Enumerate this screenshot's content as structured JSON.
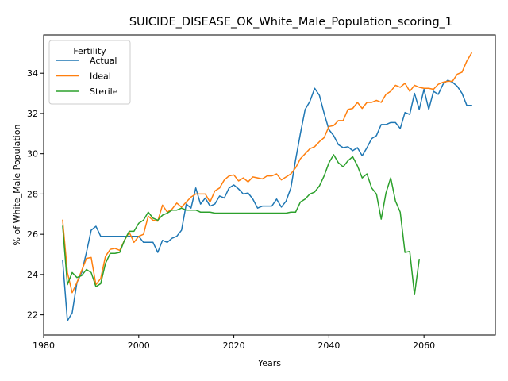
{
  "chart_data": {
    "type": "line",
    "title": "SUICIDE_DISEASE_OK_White_Male_Population_scoring_1",
    "xlabel": "Years",
    "ylabel": "% of White_Male Population",
    "xlim": [
      1980,
      2075
    ],
    "ylim": [
      21.0,
      35.9
    ],
    "xticks": [
      1980,
      2000,
      2020,
      2040,
      2060
    ],
    "yticks": [
      22,
      24,
      26,
      28,
      30,
      32,
      34
    ],
    "grid": false,
    "legend": {
      "title": "Fertility",
      "placement": "top-left"
    },
    "series": [
      {
        "name": "Actual",
        "color": "#1f77b4",
        "points": [
          [
            1984,
            24.7
          ],
          [
            1985,
            21.7
          ],
          [
            1986,
            22.1
          ],
          [
            1987,
            23.6
          ],
          [
            1988,
            24.1
          ],
          [
            1989,
            25.1
          ],
          [
            1990,
            26.2
          ],
          [
            1991,
            26.4
          ],
          [
            1992,
            25.9
          ],
          [
            1993,
            25.9
          ],
          [
            1994,
            25.9
          ],
          [
            1995,
            25.9
          ],
          [
            1996,
            25.9
          ],
          [
            1997,
            25.9
          ],
          [
            1998,
            25.9
          ],
          [
            1999,
            25.9
          ],
          [
            2000,
            25.9
          ],
          [
            2001,
            25.6
          ],
          [
            2002,
            25.6
          ],
          [
            2003,
            25.6
          ],
          [
            2004,
            25.1
          ],
          [
            2005,
            25.7
          ],
          [
            2006,
            25.6
          ],
          [
            2007,
            25.8
          ],
          [
            2008,
            25.9
          ],
          [
            2009,
            26.2
          ],
          [
            2010,
            27.5
          ],
          [
            2011,
            27.3
          ],
          [
            2012,
            28.3
          ],
          [
            2013,
            27.5
          ],
          [
            2014,
            27.8
          ],
          [
            2015,
            27.4
          ],
          [
            2016,
            27.5
          ],
          [
            2017,
            27.9
          ],
          [
            2018,
            27.8
          ],
          [
            2019,
            28.3
          ],
          [
            2020,
            28.45
          ],
          [
            2021,
            28.25
          ],
          [
            2022,
            28.0
          ],
          [
            2023,
            28.05
          ],
          [
            2024,
            27.75
          ],
          [
            2025,
            27.3
          ],
          [
            2026,
            27.4
          ],
          [
            2027,
            27.4
          ],
          [
            2028,
            27.4
          ],
          [
            2029,
            27.75
          ],
          [
            2030,
            27.35
          ],
          [
            2031,
            27.65
          ],
          [
            2032,
            28.3
          ],
          [
            2033,
            29.7
          ],
          [
            2034,
            31.0
          ],
          [
            2035,
            32.2
          ],
          [
            2036,
            32.6
          ],
          [
            2037,
            33.25
          ],
          [
            2038,
            32.9
          ],
          [
            2039,
            32.0
          ],
          [
            2040,
            31.2
          ],
          [
            2041,
            30.9
          ],
          [
            2042,
            30.45
          ],
          [
            2043,
            30.3
          ],
          [
            2044,
            30.35
          ],
          [
            2045,
            30.15
          ],
          [
            2046,
            30.3
          ],
          [
            2047,
            29.9
          ],
          [
            2048,
            30.3
          ],
          [
            2049,
            30.75
          ],
          [
            2050,
            30.9
          ],
          [
            2051,
            31.45
          ],
          [
            2052,
            31.45
          ],
          [
            2053,
            31.55
          ],
          [
            2054,
            31.55
          ],
          [
            2055,
            31.25
          ],
          [
            2056,
            32.05
          ],
          [
            2057,
            31.95
          ],
          [
            2058,
            33.0
          ],
          [
            2059,
            32.2
          ],
          [
            2060,
            33.2
          ],
          [
            2061,
            32.2
          ],
          [
            2062,
            33.1
          ],
          [
            2063,
            32.95
          ],
          [
            2064,
            33.45
          ],
          [
            2065,
            33.65
          ],
          [
            2066,
            33.55
          ],
          [
            2067,
            33.35
          ],
          [
            2068,
            33.0
          ],
          [
            2069,
            32.4
          ],
          [
            2070,
            32.4
          ]
        ]
      },
      {
        "name": "Ideal",
        "color": "#ff7f0e",
        "points": [
          [
            1984,
            26.7
          ],
          [
            1985,
            24.1
          ],
          [
            1986,
            23.1
          ],
          [
            1987,
            23.6
          ],
          [
            1988,
            24.2
          ],
          [
            1989,
            24.8
          ],
          [
            1990,
            24.85
          ],
          [
            1991,
            23.5
          ],
          [
            1992,
            23.8
          ],
          [
            1993,
            24.9
          ],
          [
            1994,
            25.25
          ],
          [
            1995,
            25.3
          ],
          [
            1996,
            25.2
          ],
          [
            1997,
            25.7
          ],
          [
            1998,
            26.1
          ],
          [
            1999,
            25.6
          ],
          [
            2000,
            25.9
          ],
          [
            2001,
            26.0
          ],
          [
            2002,
            26.9
          ],
          [
            2003,
            26.7
          ],
          [
            2004,
            26.65
          ],
          [
            2005,
            27.45
          ],
          [
            2006,
            27.1
          ],
          [
            2007,
            27.25
          ],
          [
            2008,
            27.55
          ],
          [
            2009,
            27.35
          ],
          [
            2010,
            27.6
          ],
          [
            2011,
            27.85
          ],
          [
            2012,
            28.0
          ],
          [
            2013,
            28.0
          ],
          [
            2014,
            28.0
          ],
          [
            2015,
            27.6
          ],
          [
            2016,
            28.15
          ],
          [
            2017,
            28.3
          ],
          [
            2018,
            28.7
          ],
          [
            2019,
            28.9
          ],
          [
            2020,
            28.95
          ],
          [
            2021,
            28.65
          ],
          [
            2022,
            28.8
          ],
          [
            2023,
            28.6
          ],
          [
            2024,
            28.85
          ],
          [
            2025,
            28.8
          ],
          [
            2026,
            28.75
          ],
          [
            2027,
            28.9
          ],
          [
            2028,
            28.9
          ],
          [
            2029,
            29.0
          ],
          [
            2030,
            28.7
          ],
          [
            2031,
            28.85
          ],
          [
            2032,
            29.0
          ],
          [
            2033,
            29.3
          ],
          [
            2034,
            29.75
          ],
          [
            2035,
            30.0
          ],
          [
            2036,
            30.25
          ],
          [
            2037,
            30.35
          ],
          [
            2038,
            30.6
          ],
          [
            2039,
            30.8
          ],
          [
            2040,
            31.35
          ],
          [
            2041,
            31.4
          ],
          [
            2042,
            31.65
          ],
          [
            2043,
            31.65
          ],
          [
            2044,
            32.2
          ],
          [
            2045,
            32.25
          ],
          [
            2046,
            32.55
          ],
          [
            2047,
            32.25
          ],
          [
            2048,
            32.55
          ],
          [
            2049,
            32.55
          ],
          [
            2050,
            32.65
          ],
          [
            2051,
            32.55
          ],
          [
            2052,
            32.95
          ],
          [
            2053,
            33.1
          ],
          [
            2054,
            33.4
          ],
          [
            2055,
            33.3
          ],
          [
            2056,
            33.5
          ],
          [
            2057,
            33.1
          ],
          [
            2058,
            33.4
          ],
          [
            2059,
            33.3
          ],
          [
            2060,
            33.25
          ],
          [
            2061,
            33.25
          ],
          [
            2062,
            33.2
          ],
          [
            2063,
            33.45
          ],
          [
            2064,
            33.55
          ],
          [
            2065,
            33.6
          ],
          [
            2066,
            33.6
          ],
          [
            2067,
            33.95
          ],
          [
            2068,
            34.05
          ],
          [
            2069,
            34.6
          ],
          [
            2070,
            35.0
          ]
        ]
      },
      {
        "name": "Sterile",
        "color": "#2ca02c",
        "points": [
          [
            1984,
            26.4
          ],
          [
            1985,
            23.5
          ],
          [
            1986,
            24.1
          ],
          [
            1987,
            23.85
          ],
          [
            1988,
            23.95
          ],
          [
            1989,
            24.25
          ],
          [
            1990,
            24.1
          ],
          [
            1991,
            23.4
          ],
          [
            1992,
            23.55
          ],
          [
            1993,
            24.55
          ],
          [
            1994,
            25.05
          ],
          [
            1995,
            25.05
          ],
          [
            1996,
            25.1
          ],
          [
            1997,
            25.7
          ],
          [
            1998,
            26.15
          ],
          [
            1999,
            26.15
          ],
          [
            2000,
            26.55
          ],
          [
            2001,
            26.7
          ],
          [
            2002,
            27.1
          ],
          [
            2003,
            26.8
          ],
          [
            2004,
            26.7
          ],
          [
            2005,
            26.95
          ],
          [
            2006,
            27.05
          ],
          [
            2007,
            27.2
          ],
          [
            2008,
            27.2
          ],
          [
            2009,
            27.3
          ],
          [
            2010,
            27.2
          ],
          [
            2011,
            27.2
          ],
          [
            2012,
            27.2
          ],
          [
            2013,
            27.1
          ],
          [
            2014,
            27.1
          ],
          [
            2015,
            27.1
          ],
          [
            2016,
            27.05
          ],
          [
            2017,
            27.05
          ],
          [
            2018,
            27.05
          ],
          [
            2019,
            27.05
          ],
          [
            2020,
            27.05
          ],
          [
            2021,
            27.05
          ],
          [
            2022,
            27.05
          ],
          [
            2023,
            27.05
          ],
          [
            2024,
            27.05
          ],
          [
            2025,
            27.05
          ],
          [
            2026,
            27.05
          ],
          [
            2027,
            27.05
          ],
          [
            2028,
            27.05
          ],
          [
            2029,
            27.05
          ],
          [
            2030,
            27.05
          ],
          [
            2031,
            27.05
          ],
          [
            2032,
            27.1
          ],
          [
            2033,
            27.1
          ],
          [
            2034,
            27.6
          ],
          [
            2035,
            27.75
          ],
          [
            2036,
            28.0
          ],
          [
            2037,
            28.1
          ],
          [
            2038,
            28.4
          ],
          [
            2039,
            28.9
          ],
          [
            2040,
            29.55
          ],
          [
            2041,
            29.95
          ],
          [
            2042,
            29.55
          ],
          [
            2043,
            29.35
          ],
          [
            2044,
            29.65
          ],
          [
            2045,
            29.85
          ],
          [
            2046,
            29.4
          ],
          [
            2047,
            28.8
          ],
          [
            2048,
            29.0
          ],
          [
            2049,
            28.3
          ],
          [
            2050,
            28.0
          ],
          [
            2051,
            26.75
          ],
          [
            2052,
            28.05
          ],
          [
            2053,
            28.8
          ],
          [
            2054,
            27.65
          ],
          [
            2055,
            27.1
          ],
          [
            2056,
            25.1
          ],
          [
            2057,
            25.15
          ],
          [
            2058,
            23.0
          ],
          [
            2059,
            24.75
          ]
        ]
      }
    ]
  }
}
